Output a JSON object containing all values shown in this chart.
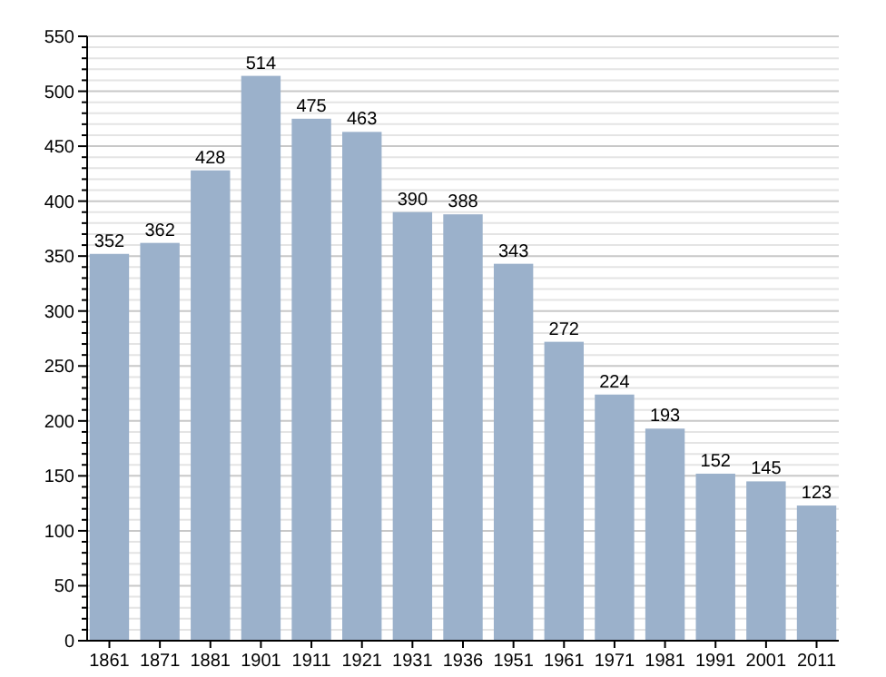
{
  "chart_data": {
    "type": "bar",
    "categories": [
      "1861",
      "1871",
      "1881",
      "1901",
      "1911",
      "1921",
      "1931",
      "1936",
      "1951",
      "1961",
      "1971",
      "1981",
      "1991",
      "2001",
      "2011"
    ],
    "values": [
      352,
      362,
      428,
      514,
      475,
      463,
      390,
      388,
      343,
      272,
      224,
      193,
      152,
      145,
      123
    ],
    "color": "#9bb1cb",
    "data_labels": true,
    "grid": "y",
    "ylim": [
      0,
      550
    ],
    "yticks": [
      0,
      {
        "value": 10,
        "label": null
      },
      {
        "value": 20,
        "label": null
      },
      {
        "value": 30,
        "label": null
      },
      {
        "value": 40,
        "label": null
      },
      50,
      {
        "value": 60,
        "label": null
      },
      {
        "value": 70,
        "label": null
      },
      {
        "value": 80,
        "label": null
      },
      {
        "value": 90,
        "label": null
      },
      100,
      {
        "value": 110,
        "label": null
      },
      {
        "value": 120,
        "label": null
      },
      {
        "value": 130,
        "label": null
      },
      {
        "value": 140,
        "label": null
      },
      150,
      {
        "value": 160,
        "label": null
      },
      {
        "value": 170,
        "label": null
      },
      {
        "value": 180,
        "label": null
      },
      {
        "value": 190,
        "label": null
      },
      200,
      {
        "value": 210,
        "label": null
      },
      {
        "value": 220,
        "label": null
      },
      {
        "value": 230,
        "label": null
      },
      {
        "value": 240,
        "label": null
      },
      250,
      {
        "value": 260,
        "label": null
      },
      {
        "value": 270,
        "label": null
      },
      {
        "value": 280,
        "label": null
      },
      {
        "value": 290,
        "label": null
      },
      300,
      {
        "value": 310,
        "label": null
      },
      {
        "value": 320,
        "label": null
      },
      {
        "value": 330,
        "label": null
      },
      {
        "value": 340,
        "label": null
      },
      350,
      {
        "value": 360,
        "label": null
      },
      {
        "value": 370,
        "label": null
      },
      {
        "value": 380,
        "label": null
      },
      {
        "value": 390,
        "label": null
      },
      400,
      {
        "value": 410,
        "label": null
      },
      {
        "value": 420,
        "label": null
      },
      {
        "value": 430,
        "label": null
      },
      {
        "value": 440,
        "label": null
      },
      450,
      {
        "value": 460,
        "label": null
      },
      {
        "value": 470,
        "label": null
      },
      {
        "value": 480,
        "label": null
      },
      {
        "value": 490,
        "label": null
      },
      500,
      {
        "value": 510,
        "label": null
      },
      {
        "value": 520,
        "label": null
      },
      {
        "value": 530,
        "label": null
      },
      {
        "value": 540,
        "label": null
      },
      550
    ]
  }
}
